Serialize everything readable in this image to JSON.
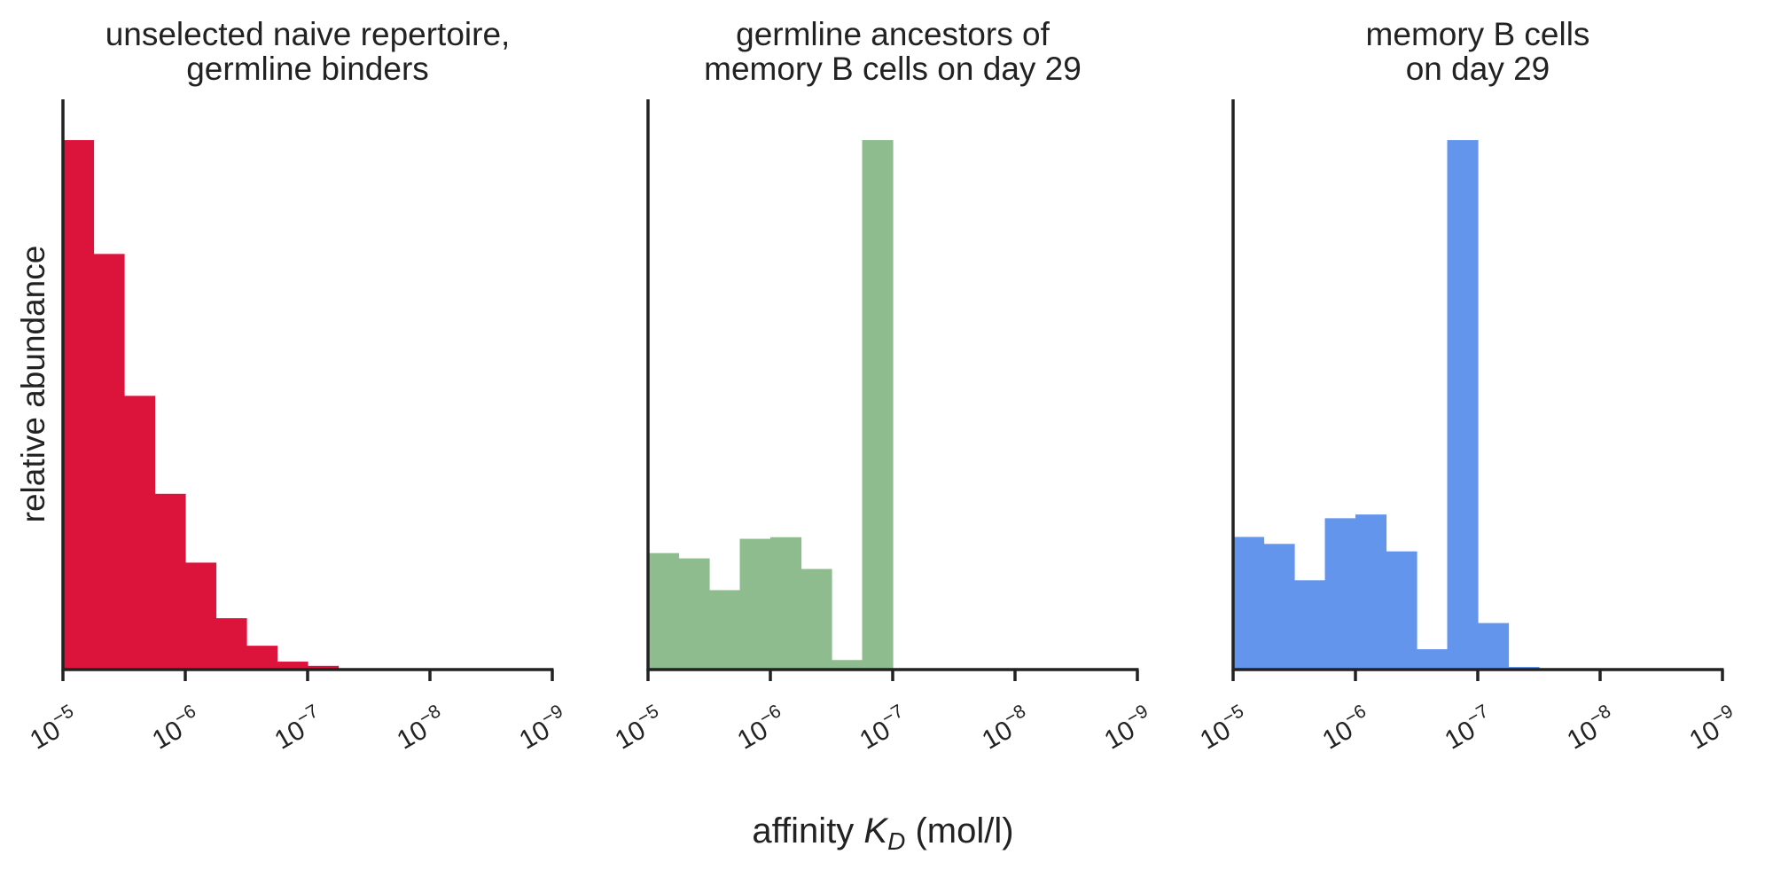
{
  "figure": {
    "ylabel": "relative abundance",
    "xlabel": {
      "prefix": "affinity ",
      "var": "K",
      "sub": "D",
      "suffix": " (mol/l)"
    }
  },
  "chart_data": [
    {
      "type": "bar",
      "title": [
        "unselected naive repertoire,",
        "germline binders"
      ],
      "color": "#dc143c",
      "x_scale": "log-reversed",
      "xlim": [
        -5,
        -9
      ],
      "xticks": [
        {
          "base": "10",
          "exp": "−5",
          "value": -5
        },
        {
          "base": "10",
          "exp": "−6",
          "value": -6
        },
        {
          "base": "10",
          "exp": "−7",
          "value": -7
        },
        {
          "base": "10",
          "exp": "−8",
          "value": -8
        },
        {
          "base": "10",
          "exp": "−9",
          "value": -9
        }
      ],
      "ylim": [
        0,
        1.08
      ],
      "yticks": "none",
      "bin_edges": [
        -5.0,
        -5.25,
        -5.5,
        -5.75,
        -6.0,
        -6.25,
        -6.5,
        -6.75,
        -7.0,
        -7.25
      ],
      "values": [
        1.0,
        0.785,
        0.517,
        0.332,
        0.202,
        0.097,
        0.045,
        0.015,
        0.007
      ]
    },
    {
      "type": "bar",
      "title": [
        "germline ancestors of",
        "memory B cells on day 29"
      ],
      "color": "#8fbc8f",
      "x_scale": "log-reversed",
      "xlim": [
        -5,
        -9
      ],
      "xticks": [
        {
          "base": "10",
          "exp": "−5",
          "value": -5
        },
        {
          "base": "10",
          "exp": "−6",
          "value": -6
        },
        {
          "base": "10",
          "exp": "−7",
          "value": -7
        },
        {
          "base": "10",
          "exp": "−8",
          "value": -8
        },
        {
          "base": "10",
          "exp": "−9",
          "value": -9
        }
      ],
      "ylim": [
        0,
        1.08
      ],
      "yticks": "none",
      "bin_edges": [
        -5.0,
        -5.25,
        -5.5,
        -5.75,
        -6.0,
        -6.25,
        -6.5,
        -6.75,
        -7.0
      ],
      "values": [
        0.22,
        0.21,
        0.15,
        0.247,
        0.25,
        0.19,
        0.018,
        1.0
      ]
    },
    {
      "type": "bar",
      "title": [
        "memory B cells",
        "on day 29"
      ],
      "color": "#6495ed",
      "x_scale": "log-reversed",
      "xlim": [
        -5,
        -9
      ],
      "xticks": [
        {
          "base": "10",
          "exp": "−5",
          "value": -5
        },
        {
          "base": "10",
          "exp": "−6",
          "value": -6
        },
        {
          "base": "10",
          "exp": "−7",
          "value": -7
        },
        {
          "base": "10",
          "exp": "−8",
          "value": -8
        },
        {
          "base": "10",
          "exp": "−9",
          "value": -9
        }
      ],
      "ylim": [
        0,
        1.08
      ],
      "yticks": "none",
      "bin_edges": [
        -5.0,
        -5.25,
        -5.5,
        -5.75,
        -6.0,
        -6.25,
        -6.5,
        -6.75,
        -7.0,
        -7.25,
        -7.5
      ],
      "values": [
        0.248,
        0.235,
        0.167,
        0.283,
        0.29,
        0.221,
        0.038,
        0.99,
        0.087,
        0.005
      ]
    }
  ]
}
